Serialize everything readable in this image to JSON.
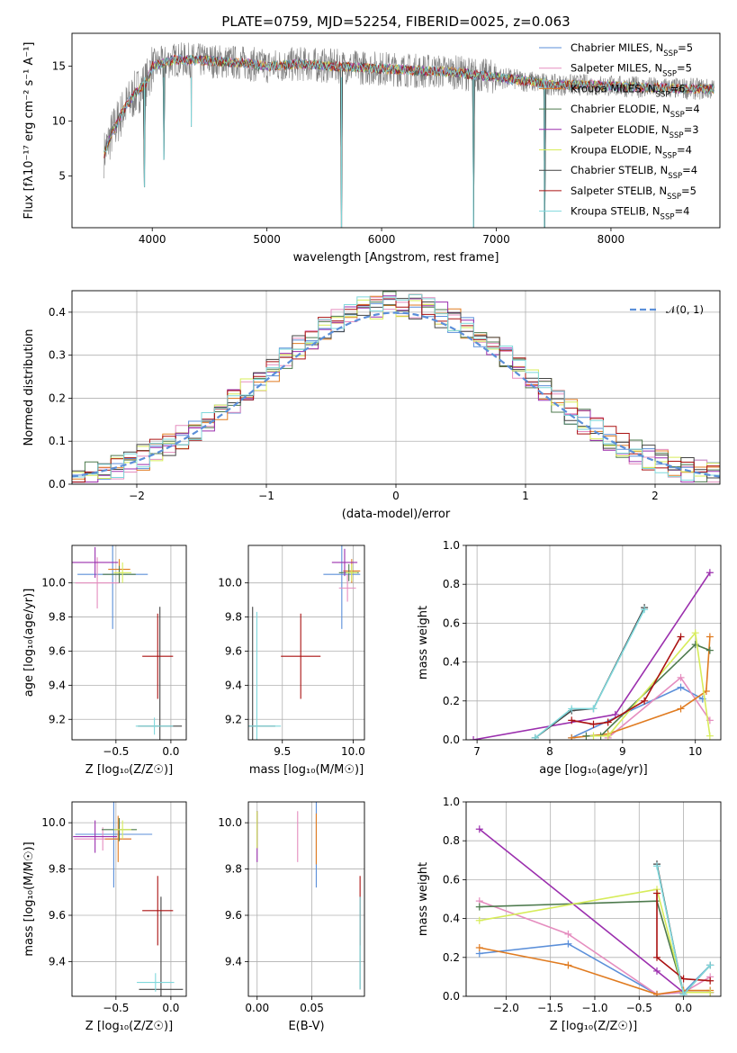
{
  "figure": {
    "title": "PLATE=0759, MJD=52254, FIBERID=0025, z=0.063"
  },
  "series_colors": {
    "Chabrier MILES": "#5b8fd9",
    "Salpeter MILES": "#e58dbf",
    "Kroupa MILES": "#e07b20",
    "Chabrier ELODIE": "#4d7a4d",
    "Salpeter ELODIE": "#9b2fae",
    "Kroupa ELODIE": "#d7ec5a",
    "Chabrier STELIB": "#444444",
    "Salpeter STELIB": "#aa1111",
    "Kroupa STELIB": "#7fd8dc"
  },
  "chart_data": [
    {
      "id": "spectrum",
      "type": "line",
      "title": "PLATE=0759, MJD=52254, FIBERID=0025, z=0.063",
      "xlabel": "wavelength [Angstrom, rest frame]",
      "ylabel": "Flux [fλ10⁻¹⁷ erg cm⁻² s⁻¹ A⁻¹]",
      "xlim": [
        3300,
        8950
      ],
      "ylim": [
        0.3,
        18
      ],
      "xticks": [
        "4000",
        "5000",
        "6000",
        "7000",
        "8000"
      ],
      "yticks": [
        "5",
        "10",
        "15"
      ],
      "grid": false,
      "legend_position": "right",
      "legend": [
        "Chabrier MILES, N_SSP=5",
        "Salpeter MILES, N_SSP=5",
        "Kroupa MILES, N_SSP=6",
        "Chabrier ELODIE, N_SSP=4",
        "Salpeter ELODIE, N_SSP=3",
        "Kroupa ELODIE, N_SSP=4",
        "Chabrier STELIB, N_SSP=4",
        "Salpeter STELIB, N_SSP=5",
        "Kroupa STELIB, N_SSP=4"
      ],
      "data_envelope": {
        "x": [
          3580,
          3650,
          3750,
          3850,
          3950,
          4000,
          4200,
          4500,
          4800,
          5000,
          5300,
          5600,
          6000,
          6300,
          6600,
          7000,
          7300,
          7500,
          7800,
          8000,
          8500,
          8900
        ],
        "y": [
          7.0,
          9.0,
          11.0,
          12.5,
          13.5,
          15.0,
          15.6,
          15.5,
          15.3,
          15.0,
          15.2,
          15.0,
          14.8,
          14.6,
          14.5,
          14.0,
          13.6,
          13.3,
          13.3,
          13.2,
          13.0,
          12.9
        ]
      },
      "absorption_features": [
        {
          "x": 3933,
          "y": 4.0
        },
        {
          "x": 4101,
          "y": 6.5
        },
        {
          "x": 4340,
          "y": 9.5
        },
        {
          "x": 5650,
          "y": 0.3
        },
        {
          "x": 6800,
          "y": 0.3
        },
        {
          "x": 7420,
          "y": 0.3
        }
      ]
    },
    {
      "id": "residuals",
      "type": "line",
      "xlabel": "(data-model)/error",
      "ylabel": "Normed distribution",
      "xlim": [
        -2.5,
        2.5
      ],
      "ylim": [
        0,
        0.45
      ],
      "xticks": [
        "−2",
        "−1",
        "0",
        "1",
        "2"
      ],
      "yticks": [
        "0.0",
        "0.1",
        "0.2",
        "0.3",
        "0.4"
      ],
      "grid": true,
      "legend": [
        "𝒩(0, 1)"
      ],
      "legend_position": "top-right",
      "bins": {
        "start": -2.5,
        "width": 0.1,
        "count": 50
      }
    },
    {
      "id": "age-vs-Z",
      "type": "scatter",
      "xlabel": "Z [log₁₀(Z/Z☉)]",
      "ylabel": "age  [log₁₀(age/yr)]",
      "xlim": [
        -0.9,
        0.14
      ],
      "ylim": [
        9.08,
        10.22
      ],
      "xticks": [
        "−0.5",
        "0.0"
      ],
      "yticks": [
        "9.2",
        "9.4",
        "9.6",
        "9.8",
        "10.0"
      ],
      "grid": true,
      "points": [
        {
          "series": "Chabrier MILES",
          "x": -0.53,
          "y": 10.05,
          "xerr": 0.32,
          "yerr": 0.32
        },
        {
          "series": "Salpeter MILES",
          "x": -0.67,
          "y": 10.0,
          "xerr": 0.2,
          "yerr": 0.15
        },
        {
          "series": "Kroupa MILES",
          "x": -0.47,
          "y": 10.08,
          "xerr": 0.1,
          "yerr": 0.06
        },
        {
          "series": "Chabrier ELODIE",
          "x": -0.47,
          "y": 10.05,
          "xerr": 0.15,
          "yerr": 0.05
        },
        {
          "series": "Salpeter ELODIE",
          "x": -0.69,
          "y": 10.12,
          "xerr": 0.21,
          "yerr": 0.09
        },
        {
          "series": "Kroupa ELODIE",
          "x": -0.44,
          "y": 10.06,
          "xerr": 0.08,
          "yerr": 0.06
        },
        {
          "series": "Chabrier STELIB",
          "x": -0.1,
          "y": 9.16,
          "xerr": 0.2,
          "yerr": 0.7
        },
        {
          "series": "Salpeter STELIB",
          "x": -0.12,
          "y": 9.57,
          "xerr": 0.14,
          "yerr": 0.25
        },
        {
          "series": "Kroupa STELIB",
          "x": -0.15,
          "y": 9.16,
          "xerr": 0.17,
          "yerr": 0.05
        }
      ]
    },
    {
      "id": "age-vs-mass",
      "type": "scatter",
      "xlabel": "mass [log₁₀(M/M☉)]",
      "ylabel": "",
      "xlim": [
        9.26,
        10.08
      ],
      "ylim": [
        9.08,
        10.22
      ],
      "xticks": [
        "9.5",
        "10.0"
      ],
      "yticks": [
        "9.2",
        "9.4",
        "9.6",
        "9.8",
        "10.0"
      ],
      "grid": true,
      "points": [
        {
          "series": "Chabrier MILES",
          "x": 9.92,
          "y": 10.05,
          "xerr": 0.13,
          "yerr": 0.32
        },
        {
          "series": "Salpeter MILES",
          "x": 9.96,
          "y": 9.97,
          "xerr": 0.06,
          "yerr": 0.08
        },
        {
          "series": "Kroupa MILES",
          "x": 9.99,
          "y": 10.07,
          "xerr": 0.06,
          "yerr": 0.07
        },
        {
          "series": "Chabrier ELODIE",
          "x": 9.97,
          "y": 10.06,
          "xerr": 0.07,
          "yerr": 0.05
        },
        {
          "series": "Salpeter ELODIE",
          "x": 9.94,
          "y": 10.12,
          "xerr": 0.09,
          "yerr": 0.08
        },
        {
          "series": "Kroupa ELODIE",
          "x": 9.99,
          "y": 10.06,
          "xerr": 0.04,
          "yerr": 0.05
        },
        {
          "series": "Chabrier STELIB",
          "x": 9.29,
          "y": 9.16,
          "xerr": 0.16,
          "yerr": 0.7
        },
        {
          "series": "Salpeter STELIB",
          "x": 9.63,
          "y": 9.57,
          "xerr": 0.14,
          "yerr": 0.25
        },
        {
          "series": "Kroupa STELIB",
          "x": 9.32,
          "y": 9.16,
          "xerr": 0.17,
          "yerr": 0.67
        }
      ]
    },
    {
      "id": "massweight-vs-age",
      "type": "line",
      "xlabel": "age  [log₁₀(age/yr)]",
      "ylabel": "mass weight",
      "xlim": [
        6.85,
        10.35
      ],
      "ylim": [
        0,
        1.0
      ],
      "xticks": [
        "7",
        "8",
        "9",
        "10"
      ],
      "yticks": [
        "0.0",
        "0.2",
        "0.4",
        "0.6",
        "0.8",
        "1.0"
      ],
      "grid": true,
      "series": [
        {
          "series": "Chabrier MILES",
          "x": [
            8.3,
            9.8,
            10.1
          ],
          "y": [
            0.01,
            0.27,
            0.21
          ]
        },
        {
          "series": "Salpeter MILES",
          "x": [
            8.8,
            9.8,
            10.2
          ],
          "y": [
            0.01,
            0.32,
            0.1
          ]
        },
        {
          "series": "Kroupa MILES",
          "x": [
            8.3,
            8.8,
            9.8,
            10.15,
            10.2
          ],
          "y": [
            0.01,
            0.03,
            0.16,
            0.25,
            0.53
          ]
        },
        {
          "series": "Chabrier ELODIE",
          "x": [
            8.5,
            8.7,
            10.0,
            10.2
          ],
          "y": [
            0.02,
            0.02,
            0.49,
            0.46
          ]
        },
        {
          "series": "Salpeter ELODIE",
          "x": [
            6.95,
            8.9,
            10.2
          ],
          "y": [
            0.0,
            0.13,
            0.86
          ]
        },
        {
          "series": "Kroupa ELODIE",
          "x": [
            8.6,
            8.8,
            10.0,
            10.2
          ],
          "y": [
            0.02,
            0.02,
            0.55,
            0.02
          ]
        },
        {
          "series": "Chabrier STELIB",
          "x": [
            7.8,
            8.3,
            8.6,
            9.3
          ],
          "y": [
            0.01,
            0.15,
            0.16,
            0.68
          ]
        },
        {
          "series": "Salpeter STELIB",
          "x": [
            8.3,
            8.6,
            8.8,
            9.3,
            9.8
          ],
          "y": [
            0.1,
            0.08,
            0.09,
            0.2,
            0.53
          ]
        },
        {
          "series": "Kroupa STELIB",
          "x": [
            7.8,
            8.3,
            8.6,
            9.3
          ],
          "y": [
            0.01,
            0.16,
            0.16,
            0.67
          ]
        }
      ]
    },
    {
      "id": "mass-vs-Z",
      "type": "scatter",
      "xlabel": "Z [log₁₀(Z/Z☉)]",
      "ylabel": "mass [log₁₀(M/M☉)]",
      "xlim": [
        -0.9,
        0.14
      ],
      "ylim": [
        9.25,
        10.09
      ],
      "xticks": [
        "−0.5",
        "0.0"
      ],
      "yticks": [
        "9.4",
        "9.6",
        "9.8",
        "10.0"
      ],
      "grid": true,
      "points": [
        {
          "series": "Chabrier MILES",
          "x": -0.52,
          "y": 9.95,
          "xerr": 0.35,
          "yerr": 0.23
        },
        {
          "series": "Salpeter MILES",
          "x": -0.62,
          "y": 9.93,
          "xerr": 0.26,
          "yerr": 0.05
        },
        {
          "series": "Kroupa MILES",
          "x": -0.48,
          "y": 9.93,
          "xerr": 0.12,
          "yerr": 0.1
        },
        {
          "series": "Chabrier ELODIE",
          "x": -0.47,
          "y": 9.97,
          "xerr": 0.16,
          "yerr": 0.05
        },
        {
          "series": "Salpeter ELODIE",
          "x": -0.69,
          "y": 9.94,
          "xerr": 0.2,
          "yerr": 0.07
        },
        {
          "series": "Kroupa ELODIE",
          "x": -0.44,
          "y": 9.97,
          "xerr": 0.08,
          "yerr": 0.04
        },
        {
          "series": "Chabrier STELIB",
          "x": -0.09,
          "y": 9.28,
          "xerr": 0.2,
          "yerr": 0.4
        },
        {
          "series": "Salpeter STELIB",
          "x": -0.12,
          "y": 9.62,
          "xerr": 0.14,
          "yerr": 0.15
        },
        {
          "series": "Kroupa STELIB",
          "x": -0.14,
          "y": 9.31,
          "xerr": 0.17,
          "yerr": 0.04
        }
      ]
    },
    {
      "id": "mass-vs-ebv",
      "type": "scatter",
      "xlabel": "E(B-V)",
      "ylabel": "",
      "xlim": [
        -0.008,
        0.098
      ],
      "ylim": [
        9.25,
        10.09
      ],
      "xticks": [
        "0.00",
        "0.05"
      ],
      "yticks": [
        "9.4",
        "9.6",
        "9.8",
        "10.0"
      ],
      "grid": true,
      "points": [
        {
          "series": "Chabrier MILES",
          "x": 0.054,
          "y": 9.95,
          "xerr": 0,
          "yerr": 0.23
        },
        {
          "series": "Salpeter MILES",
          "x": 0.037,
          "y": 9.94,
          "xerr": 0,
          "yerr": 0.11
        },
        {
          "series": "Kroupa MILES",
          "x": 0.054,
          "y": 9.93,
          "xerr": 0,
          "yerr": 0.11
        },
        {
          "series": "Chabrier ELODIE",
          "x": 0.0,
          "y": 9.97,
          "xerr": 0,
          "yerr": 0.08
        },
        {
          "series": "Salpeter ELODIE",
          "x": 0.0,
          "y": 9.94,
          "xerr": 0,
          "yerr": 0.11
        },
        {
          "series": "Kroupa ELODIE",
          "x": 0.0,
          "y": 9.97,
          "xerr": 0,
          "yerr": 0.08
        },
        {
          "series": "Chabrier STELIB",
          "x": 0.094,
          "y": 9.48,
          "xerr": 0,
          "yerr": 0.2
        },
        {
          "series": "Salpeter STELIB",
          "x": 0.094,
          "y": 9.62,
          "xerr": 0,
          "yerr": 0.15
        },
        {
          "series": "Kroupa STELIB",
          "x": 0.094,
          "y": 9.48,
          "xerr": 0,
          "yerr": 0.2
        }
      ]
    },
    {
      "id": "massweight-vs-Z",
      "type": "line",
      "xlabel": "Z [log₁₀(Z/Z☉)]",
      "ylabel": "mass weight",
      "xlim": [
        -2.45,
        0.42
      ],
      "ylim": [
        0,
        1.0
      ],
      "xticks": [
        "−2.0",
        "−1.5",
        "−1.0",
        "−0.5",
        "0.0"
      ],
      "yticks": [
        "0.0",
        "0.2",
        "0.4",
        "0.6",
        "0.8",
        "1.0"
      ],
      "grid": true,
      "series": [
        {
          "series": "Chabrier MILES",
          "x": [
            -2.3,
            -1.3,
            -0.3,
            0.0,
            0.3
          ],
          "y": [
            0.22,
            0.27,
            0.01,
            0.02,
            0.16
          ]
        },
        {
          "series": "Salpeter MILES",
          "x": [
            -2.3,
            -1.3,
            -0.3,
            0.0,
            0.3
          ],
          "y": [
            0.49,
            0.32,
            0.01,
            0.02,
            0.1
          ]
        },
        {
          "series": "Kroupa MILES",
          "x": [
            -2.3,
            -1.3,
            -0.3,
            0.0,
            0.3
          ],
          "y": [
            0.25,
            0.16,
            0.01,
            0.03,
            0.03
          ]
        },
        {
          "series": "Chabrier ELODIE",
          "x": [
            -2.3,
            -0.3,
            0.0,
            0.3
          ],
          "y": [
            0.46,
            0.49,
            0.02,
            0.02
          ]
        },
        {
          "series": "Salpeter ELODIE",
          "x": [
            -2.3,
            -0.3,
            0.0,
            0.3
          ],
          "y": [
            0.86,
            0.13,
            0.02,
            0.02
          ]
        },
        {
          "series": "Kroupa ELODIE",
          "x": [
            -2.3,
            -0.3,
            0.0,
            0.3
          ],
          "y": [
            0.39,
            0.55,
            0.02,
            0.02
          ]
        },
        {
          "series": "Chabrier STELIB",
          "x": [
            -0.3,
            0.0,
            0.3
          ],
          "y": [
            0.68,
            0.01,
            0.16
          ]
        },
        {
          "series": "Salpeter STELIB",
          "x": [
            -0.3,
            -0.3,
            0.0,
            0.3
          ],
          "y": [
            0.53,
            0.2,
            0.09,
            0.08
          ]
        },
        {
          "series": "Kroupa STELIB",
          "x": [
            -0.3,
            0.0,
            0.3
          ],
          "y": [
            0.67,
            0.01,
            0.16
          ]
        }
      ]
    }
  ]
}
